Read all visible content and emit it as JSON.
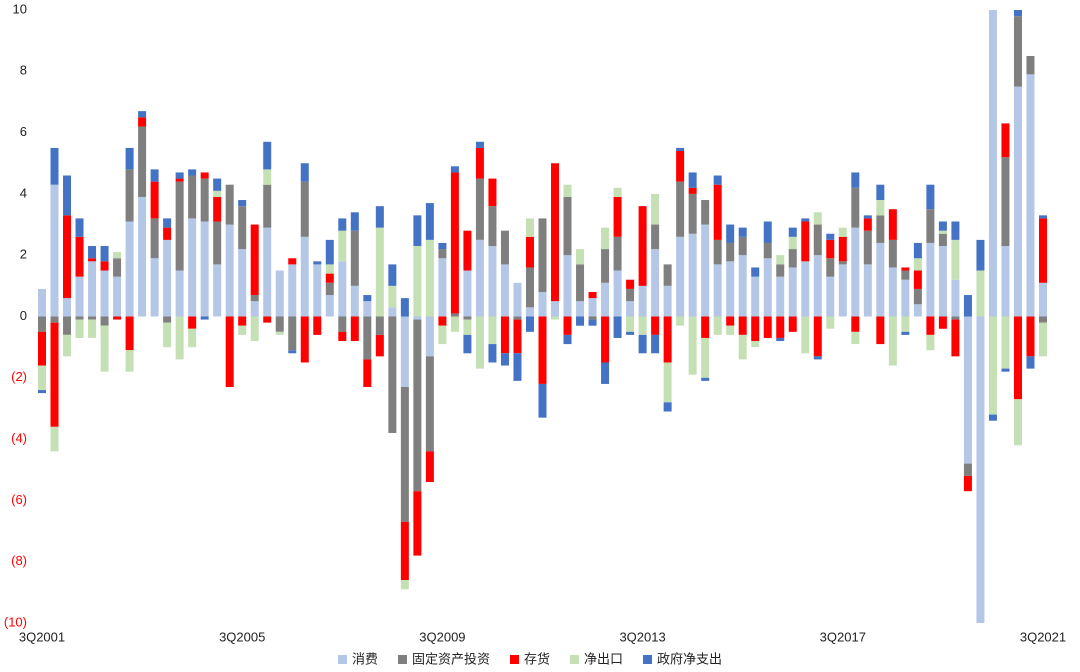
{
  "chart_data": {
    "type": "stacked_bar",
    "categories": [
      "3Q2001",
      null,
      null,
      null,
      null,
      null,
      null,
      null,
      null,
      null,
      null,
      null,
      null,
      null,
      null,
      null,
      "3Q2005",
      null,
      null,
      null,
      null,
      null,
      null,
      null,
      null,
      null,
      null,
      null,
      null,
      null,
      null,
      null,
      "3Q2009",
      null,
      null,
      null,
      null,
      null,
      null,
      null,
      null,
      null,
      null,
      null,
      null,
      null,
      null,
      null,
      "3Q2013",
      null,
      null,
      null,
      null,
      null,
      null,
      null,
      null,
      null,
      null,
      null,
      null,
      null,
      null,
      null,
      "3Q2017",
      null,
      null,
      null,
      null,
      null,
      null,
      null,
      null,
      null,
      null,
      null,
      null,
      null,
      null,
      null,
      "3Q2021"
    ],
    "series": [
      {
        "name": "消费",
        "color": "#b4c7e7",
        "values": [
          0.9,
          4.3,
          0.6,
          1.3,
          1.8,
          1.5,
          1.3,
          3.1,
          3.9,
          1.9,
          2.5,
          1.5,
          3.2,
          3.1,
          1.7,
          3.0,
          2.2,
          0.5,
          2.9,
          1.5,
          1.7,
          2.6,
          1.7,
          0.7,
          1.8,
          1.0,
          0.5,
          0,
          0.3,
          -2.3,
          -0.1,
          -1.3,
          1.9,
          0,
          1.5,
          2.5,
          2.3,
          1.7,
          1.1,
          0.3,
          0.8,
          0.5,
          2.0,
          0.5,
          0.6,
          1.1,
          1.5,
          0.5,
          1.0,
          2.2,
          1.0,
          2.6,
          2.7,
          3.0,
          1.7,
          1.8,
          2.0,
          1.3,
          1.9,
          1.3,
          1.6,
          1.8,
          2.0,
          1.3,
          1.7,
          2.9,
          1.7,
          2.4,
          1.6,
          1.2,
          0.4,
          2.4,
          2.3,
          1.2,
          -4.8,
          -10,
          10,
          2.3,
          7.5,
          7.9,
          1.1
        ]
      },
      {
        "name": "固定资产投资",
        "color": "#7f7f7f",
        "values": [
          -0.5,
          -0.2,
          -0.6,
          -0.1,
          -0.1,
          -0.3,
          0.6,
          1.7,
          2.3,
          1.3,
          -0.2,
          2.9,
          1.4,
          1.4,
          1.4,
          1.3,
          1.4,
          0.2,
          1.4,
          -0.5,
          -1.1,
          1.8,
          0,
          0.4,
          -0.5,
          1.8,
          -1.4,
          -0.6,
          -3.8,
          -4.4,
          -5.6,
          -3.1,
          0.3,
          0.1,
          -0.1,
          2.0,
          1.3,
          1.1,
          -0.1,
          1.3,
          2.4,
          0,
          1.9,
          1.2,
          -0.1,
          1.1,
          1.1,
          0.4,
          0,
          0.8,
          0.7,
          1.8,
          1.3,
          0.8,
          0.8,
          0.6,
          0.6,
          0,
          0.5,
          0.4,
          0.6,
          0,
          1.0,
          0.6,
          0.1,
          1.3,
          1.1,
          0.9,
          0.9,
          0.3,
          0.5,
          1.1,
          0.4,
          -0.1,
          -0.4,
          0,
          0,
          2.9,
          2.3,
          0.6,
          -0.2
        ]
      },
      {
        "name": "存货",
        "color": "#ff0000",
        "values": [
          -1.1,
          -3.4,
          2.7,
          1.3,
          0.1,
          0.3,
          -0.1,
          -1.1,
          0.3,
          1.2,
          0.4,
          0.1,
          -0.4,
          0.2,
          0.8,
          -2.3,
          -0.3,
          2.3,
          -0.2,
          0,
          0.2,
          -1.5,
          -0.6,
          0.3,
          -0.3,
          -0.8,
          -0.9,
          -0.7,
          0,
          -1.9,
          -2.1,
          -1.0,
          -0.3,
          4.6,
          1.3,
          1.0,
          0.9,
          -1.2,
          -1.1,
          1.0,
          -2.2,
          4.5,
          -0.6,
          0,
          0.2,
          -1.5,
          1.3,
          0.3,
          2.6,
          -0.6,
          -1.5,
          1.0,
          0.2,
          -0.7,
          1.8,
          -0.3,
          -0.6,
          -0.8,
          -0.7,
          -0.7,
          -0.5,
          1.3,
          -1.3,
          0.6,
          0.8,
          -0.5,
          0.4,
          -0.9,
          1.0,
          0.1,
          0.6,
          -0.6,
          -0.4,
          -1.2,
          -0.5,
          0,
          0,
          1.1,
          -2.7,
          -1.3,
          2.1
        ]
      },
      {
        "name": "净出口",
        "color": "#c5e0b4",
        "values": [
          -0.8,
          -0.8,
          -0.7,
          -0.6,
          -0.6,
          -1.5,
          0.2,
          -0.7,
          0,
          0,
          -0.8,
          -1.4,
          -0.6,
          0,
          0.2,
          0,
          -0.3,
          -0.8,
          0.5,
          -0.1,
          0,
          0,
          0,
          0.3,
          1.0,
          0,
          0,
          2.9,
          0.7,
          -0.3,
          2.3,
          2.5,
          -0.6,
          -0.5,
          -0.5,
          -1.7,
          -0.9,
          0,
          0,
          0.6,
          0,
          -0.1,
          0.4,
          0.5,
          0,
          0.7,
          0.3,
          -0.5,
          -0.6,
          1.0,
          -1.3,
          -0.3,
          -1.9,
          -1.3,
          -0.6,
          -0.3,
          -0.8,
          -0.2,
          0,
          0.3,
          0.4,
          -1.2,
          0.4,
          -0.4,
          0.3,
          -0.4,
          0,
          0.5,
          -1.6,
          -0.5,
          0.4,
          -0.5,
          0.1,
          1.3,
          0,
          1.5,
          -3.2,
          -1.7,
          -1.5,
          0,
          -1.1
        ]
      },
      {
        "name": "政府净支出",
        "color": "#4472c4",
        "values": [
          -0.1,
          1.2,
          1.3,
          0.6,
          0.4,
          0.5,
          0,
          0.7,
          0.2,
          0.4,
          0.3,
          0.2,
          0.2,
          -0.1,
          0.4,
          0,
          0.2,
          0,
          0.9,
          0,
          -0.1,
          0.6,
          0.1,
          0.8,
          0.4,
          0.6,
          0.2,
          0.7,
          0.7,
          0.6,
          1.0,
          1.2,
          0.2,
          0.2,
          -0.6,
          0.2,
          -0.6,
          -0.4,
          -0.9,
          -0.5,
          -1.1,
          0,
          -0.3,
          -0.3,
          -0.2,
          -0.7,
          -0.7,
          -0.1,
          -0.6,
          -0.6,
          -0.3,
          0.1,
          0.5,
          -0.1,
          0.3,
          0.6,
          0.3,
          0.3,
          0.7,
          -0.1,
          0.3,
          0.1,
          -0.1,
          0.2,
          0,
          0.5,
          0.1,
          0.5,
          0,
          -0.1,
          0.5,
          0.8,
          0.3,
          0.6,
          0.7,
          1.0,
          -0.2,
          -0.1,
          0.3,
          -0.4,
          0.1
        ]
      }
    ],
    "ylim": [
      -10,
      10
    ],
    "yticks": [
      10,
      8,
      6,
      4,
      2,
      0,
      {
        "value": -2,
        "label": "(2)"
      },
      {
        "value": -4,
        "label": "(4)"
      },
      {
        "value": -6,
        "label": "(6)"
      },
      {
        "value": -8,
        "label": "(8)"
      },
      {
        "value": -10,
        "label": "(10)"
      }
    ],
    "negative_tick_color": "#ff0000",
    "legend": "bottom"
  }
}
